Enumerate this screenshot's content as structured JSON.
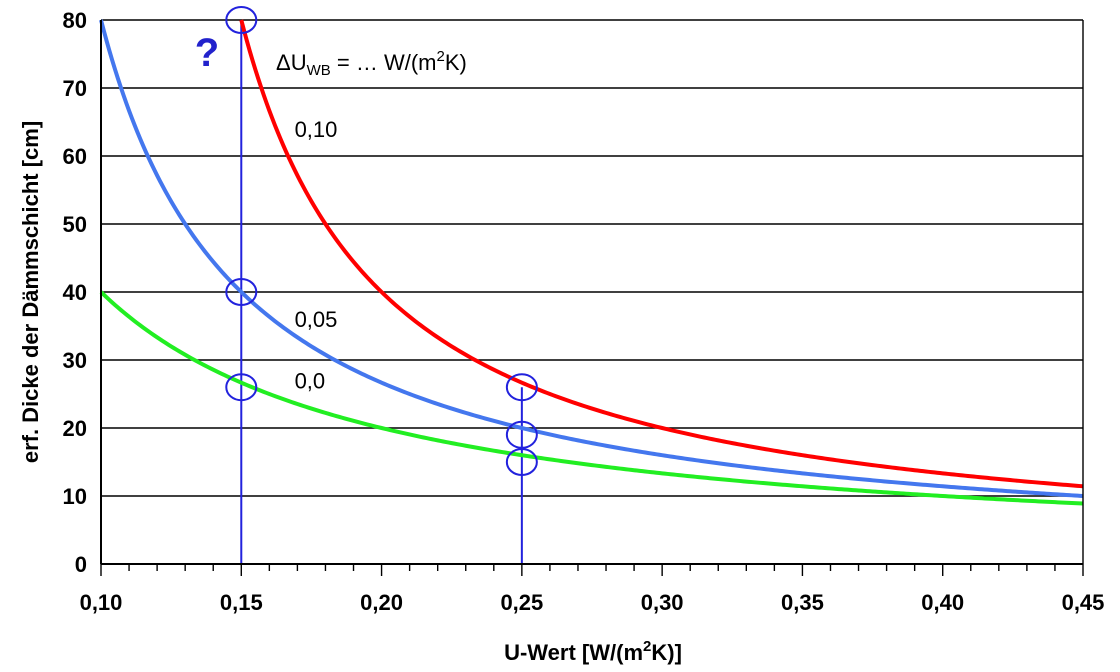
{
  "chart_data": {
    "type": "line",
    "xlabel": "U-Wert [W/(m",
    "xlabel_sup": "2",
    "xlabel_end": "K)]",
    "ylabel": "erf. Dicke der Dämmschicht [cm]",
    "xlim": [
      0.1,
      0.45
    ],
    "ylim": [
      0,
      80
    ],
    "x_ticks": [
      0.1,
      0.15,
      0.2,
      0.25,
      0.3,
      0.35,
      0.4,
      0.45
    ],
    "x_tick_labels": [
      "0,10",
      "0,15",
      "0,20",
      "0,25",
      "0,30",
      "0,35",
      "0,40",
      "0,45"
    ],
    "y_ticks": [
      0,
      10,
      20,
      30,
      40,
      50,
      60,
      70,
      80
    ],
    "y_tick_labels": [
      "0",
      "10",
      "20",
      "30",
      "40",
      "50",
      "60",
      "70",
      "80"
    ],
    "grid": "horizontal",
    "legend": {
      "prefix": "ΔU",
      "sub": "WB",
      "mid": " = … W/(m",
      "sup": "2",
      "end": "K)"
    },
    "question_mark": "?",
    "series": [
      {
        "name": "0,10",
        "color": "#ff0000",
        "dU": 0.1,
        "k": 4.0,
        "x": [
          0.15,
          0.16,
          0.18,
          0.2,
          0.25,
          0.3,
          0.35,
          0.4,
          0.45
        ],
        "values": [
          80.0,
          66.7,
          50.0,
          40.0,
          26.7,
          20.0,
          16.0,
          13.3,
          11.4
        ]
      },
      {
        "name": "0,05",
        "color": "#4477ee",
        "dU": 0.05,
        "k": 4.0,
        "x": [
          0.1,
          0.12,
          0.15,
          0.2,
          0.25,
          0.3,
          0.35,
          0.4,
          0.45
        ],
        "values": [
          80.0,
          57.1,
          40.0,
          26.7,
          20.0,
          16.0,
          13.3,
          11.4,
          10.0
        ]
      },
      {
        "name": "0,0",
        "color": "#22ee22",
        "dU": 0.0,
        "k": 4.0,
        "x": [
          0.1,
          0.12,
          0.15,
          0.2,
          0.25,
          0.3,
          0.35,
          0.4,
          0.45
        ],
        "values": [
          40.0,
          33.3,
          26.7,
          20.0,
          16.0,
          13.3,
          11.4,
          10.0,
          8.9
        ]
      }
    ],
    "series_label_points": [
      [
        0.164,
        64
      ],
      [
        0.164,
        36
      ],
      [
        0.164,
        27
      ]
    ],
    "markers": [
      {
        "x": 0.15,
        "y": 80
      },
      {
        "x": 0.15,
        "y": 40
      },
      {
        "x": 0.15,
        "y": 26
      },
      {
        "x": 0.25,
        "y": 26
      },
      {
        "x": 0.25,
        "y": 19
      },
      {
        "x": 0.25,
        "y": 15
      }
    ],
    "vertical_lines": [
      {
        "x": 0.15,
        "y_top": 80
      },
      {
        "x": 0.25,
        "y_top": 26
      }
    ],
    "colors": {
      "grid": "#000000",
      "marker": "#2222dd",
      "question": "#2222cc"
    }
  }
}
